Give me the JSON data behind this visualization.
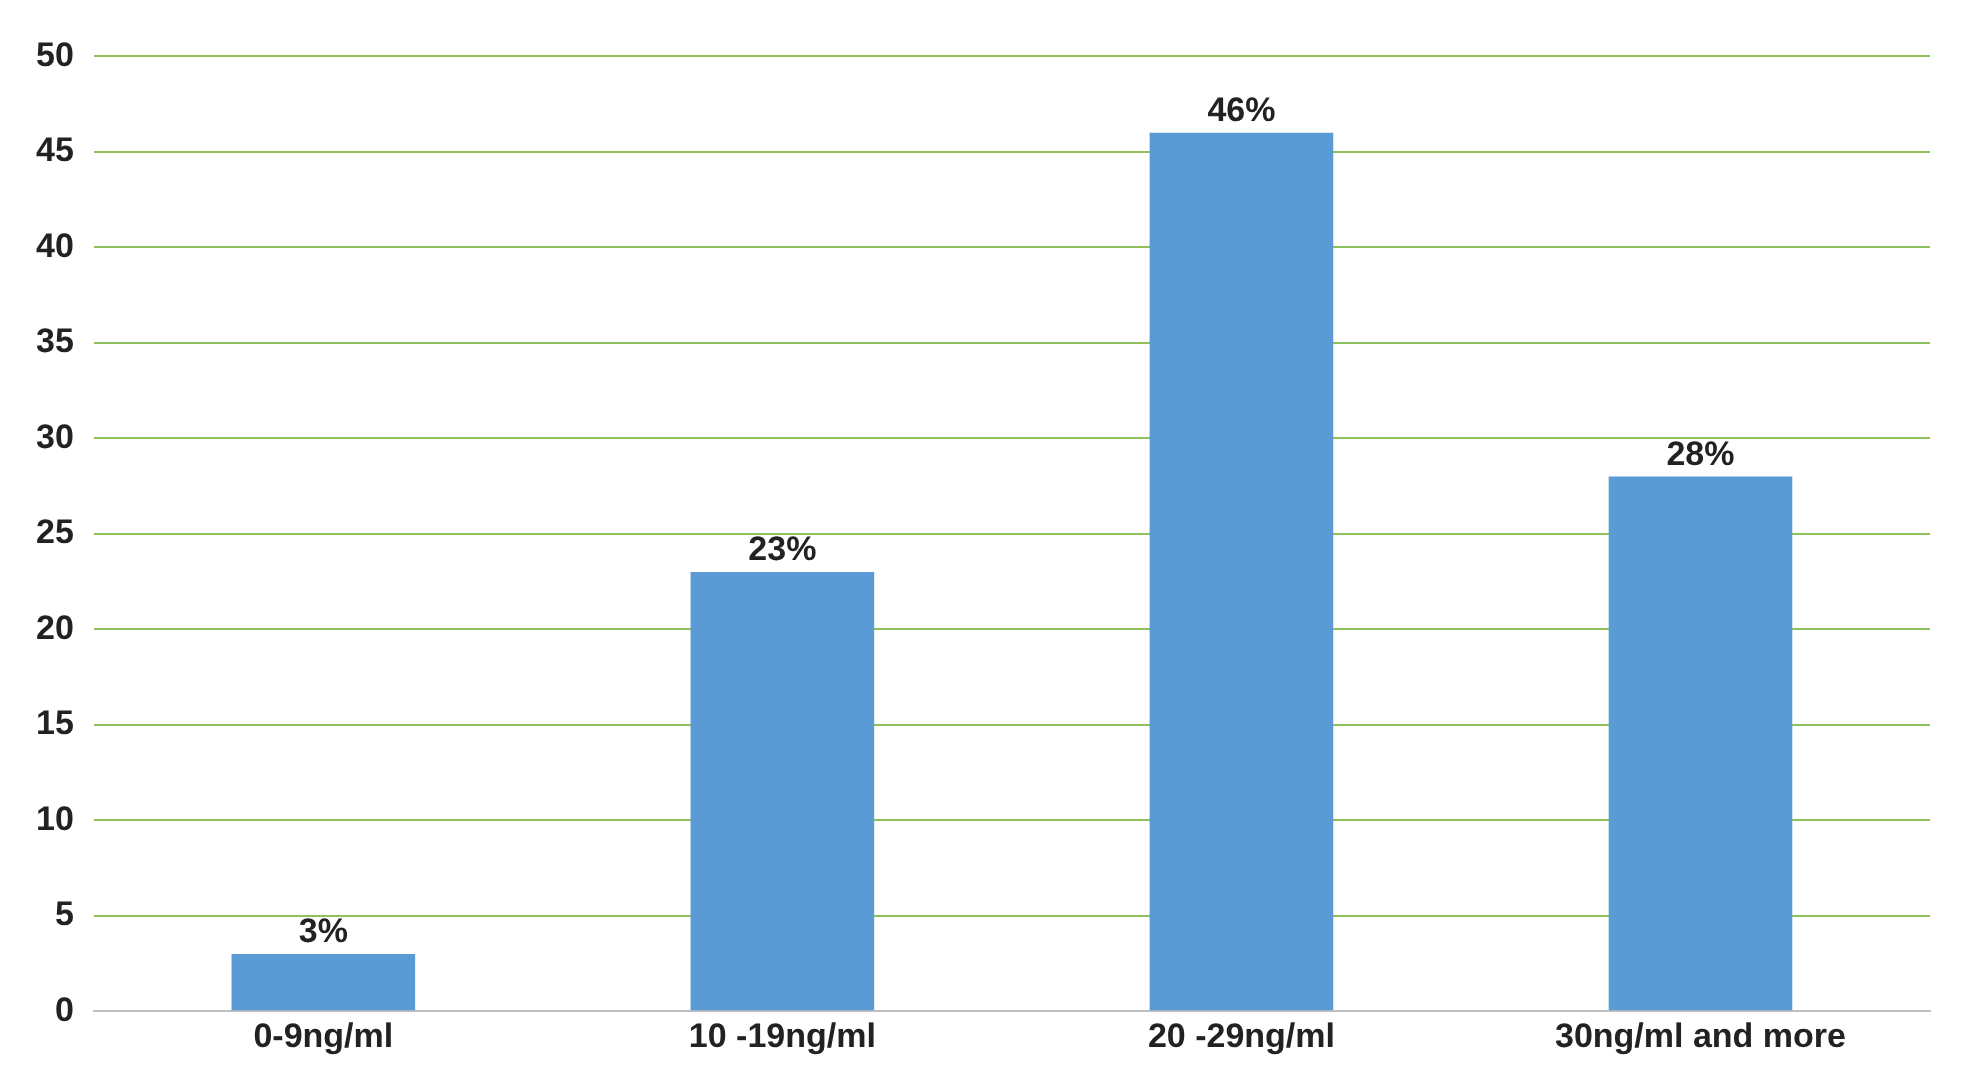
{
  "chart_data": {
    "type": "bar",
    "categories": [
      "0-9ng/ml",
      "10 -19ng/ml",
      "20 -29ng/ml",
      "30ng/ml and more"
    ],
    "values": [
      3,
      23,
      46,
      28
    ],
    "color": "#5b9bd5",
    "value_labels": [
      "3%",
      "23%",
      "46%",
      "28%"
    ],
    "ylim": [
      0,
      50
    ],
    "yticks": [
      0,
      5,
      10,
      15,
      20,
      25,
      30,
      35,
      40,
      45,
      50
    ],
    "grid": "y",
    "legend": false
  }
}
